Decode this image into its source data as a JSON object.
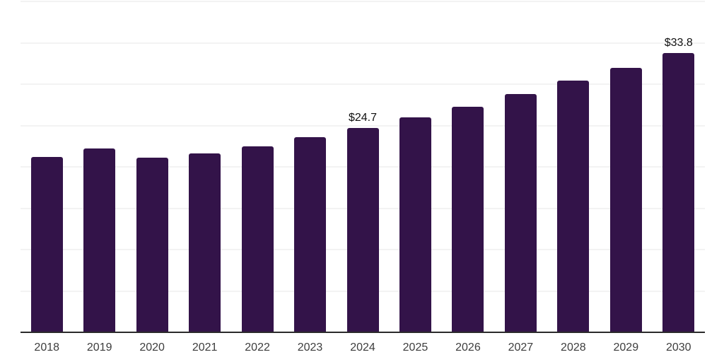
{
  "chart_data": {
    "type": "bar",
    "title": "",
    "xlabel": "",
    "ylabel": "",
    "categories": [
      "2018",
      "2019",
      "2020",
      "2021",
      "2022",
      "2023",
      "2024",
      "2025",
      "2026",
      "2027",
      "2028",
      "2029",
      "2030"
    ],
    "values": [
      21.2,
      22.2,
      21.1,
      21.6,
      22.5,
      23.6,
      24.7,
      26.0,
      27.3,
      28.8,
      30.4,
      32.0,
      33.8
    ],
    "data_labels": {
      "2024": "$24.7",
      "2030": "$33.8"
    },
    "ylim": [
      0,
      40
    ],
    "grid": {
      "visible": true,
      "step": 5,
      "orientation": "horizontal"
    },
    "legend": "none",
    "y_axis_ticks_visible": false,
    "colors": {
      "bar": "#331349",
      "gridline": "#f3f3f3",
      "axis_line": "#2b2b2b",
      "data_label": "#111111",
      "tick_label": "#3d3d3d",
      "background": "#ffffff"
    }
  }
}
